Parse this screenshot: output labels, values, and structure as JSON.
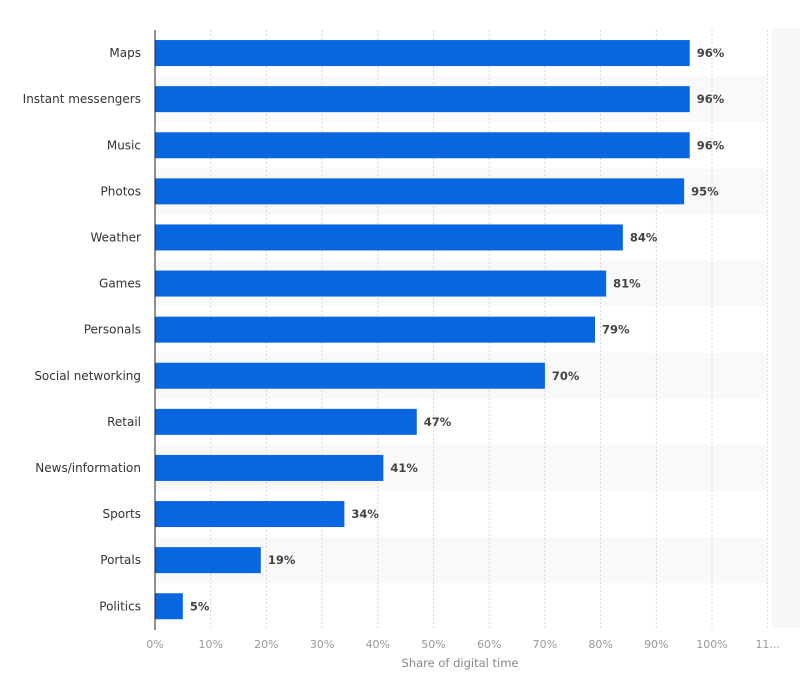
{
  "chart_data": {
    "type": "bar",
    "orientation": "horizontal",
    "categories": [
      "Maps",
      "Instant messengers",
      "Music",
      "Photos",
      "Weather",
      "Games",
      "Personals",
      "Social networking",
      "Retail",
      "News/information",
      "Sports",
      "Portals",
      "Politics"
    ],
    "values": [
      96,
      96,
      96,
      95,
      84,
      81,
      79,
      70,
      47,
      41,
      34,
      19,
      5
    ],
    "value_labels": [
      "96%",
      "96%",
      "96%",
      "95%",
      "84%",
      "81%",
      "79%",
      "70%",
      "47%",
      "41%",
      "34%",
      "19%",
      "5%"
    ],
    "xlabel": "Share of digital time",
    "ylabel": "",
    "xlim": [
      0,
      110
    ],
    "xticks": [
      "0%",
      "10%",
      "20%",
      "30%",
      "40%",
      "50%",
      "60%",
      "70%",
      "80%",
      "90%",
      "100%",
      "11..."
    ],
    "grid": true,
    "bar_color": "#0766e0"
  }
}
